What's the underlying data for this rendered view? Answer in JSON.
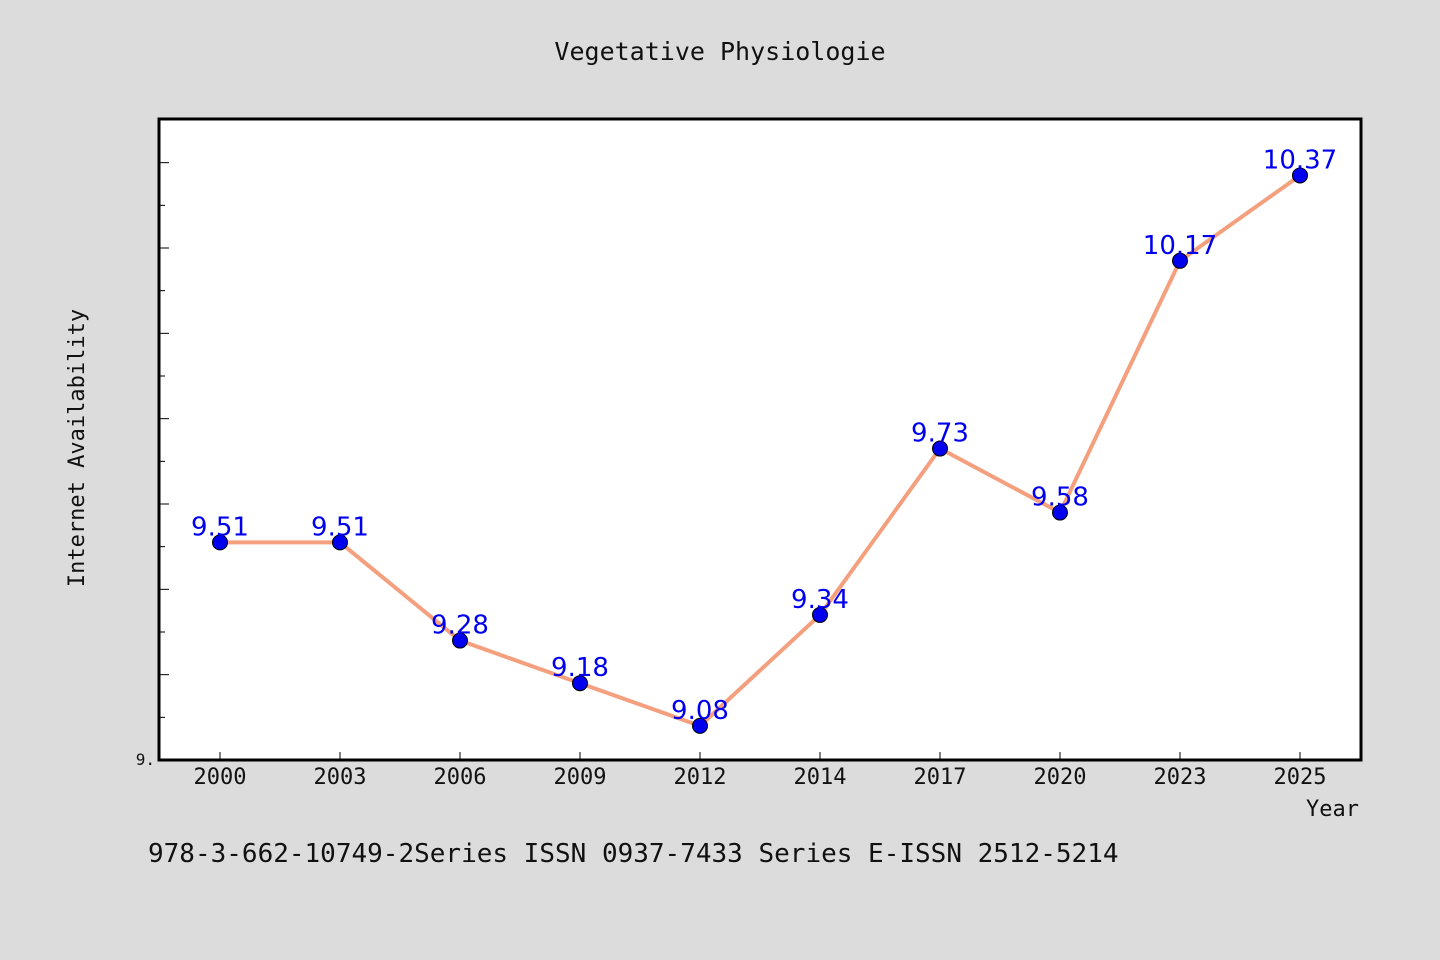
{
  "chart_data": {
    "type": "line",
    "title": "Vegetative Physiologie",
    "xlabel": "Year",
    "ylabel": "Internet Availability",
    "categories": [
      "2000",
      "2003",
      "2006",
      "2009",
      "2012",
      "2014",
      "2017",
      "2020",
      "2023",
      "2025"
    ],
    "series": [
      {
        "values": [
          9.51,
          9.51,
          9.28,
          9.18,
          9.08,
          9.34,
          9.73,
          9.58,
          10.17,
          10.37
        ],
        "labels": [
          "9.51",
          "9.51",
          "9.28",
          "9.18",
          "9.08",
          "9.34",
          "9.73",
          "9.58",
          "10.17",
          "10.37"
        ]
      }
    ],
    "ylim": [
      9.0,
      10.5
    ],
    "yticks": [
      9.0,
      9.1,
      9.2,
      9.3,
      9.4,
      9.5,
      9.6,
      9.7,
      9.8,
      9.9,
      10.0,
      10.1,
      10.2,
      10.3,
      10.4
    ],
    "ytick_labels_shown": [
      "9."
    ],
    "line_color": "#f4a07e",
    "marker_color": "#0000ee",
    "label_color": "#0000ee",
    "plot_background": "#ffffff",
    "page_background": "#dcdcdc",
    "grid": false,
    "footer": "978-3-662-10749-2Series ISSN 0937-7433 Series E-ISSN 2512-5214"
  }
}
